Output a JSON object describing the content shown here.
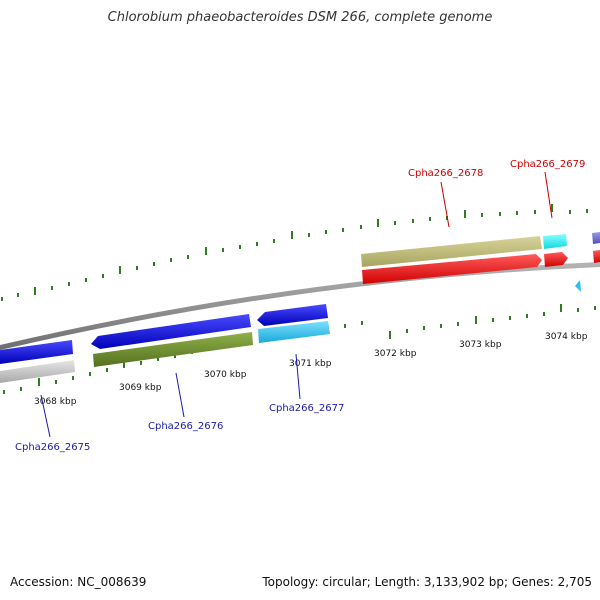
{
  "title": "Chlorobium phaeobacteroides DSM 266, complete genome",
  "footer": {
    "accession": "Accession: NC_008639",
    "summary": "Topology: circular; Length: 3,133,902 bp; Genes: 2,705"
  },
  "kbp_ticks": [
    "3068 kbp",
    "3069 kbp",
    "3070 kbp",
    "3071 kbp",
    "3072 kbp",
    "3073 kbp",
    "3074 kbp"
  ],
  "genes": [
    {
      "label": "Cpha266_2675",
      "color": "#1a1ab0"
    },
    {
      "label": "Cpha266_2676",
      "color": "#1a1ab0"
    },
    {
      "label": "Cpha266_2677",
      "color": "#1a1ab0"
    },
    {
      "label": "Cpha266_2678",
      "color": "#cc0000"
    },
    {
      "label": "Cpha266_2679",
      "color": "#cc0000"
    }
  ],
  "colors": {
    "backbone": "#888888",
    "tick": "#2e7d1f",
    "cds_blue": "#1010dd",
    "cds_gray": "#c8c8c8",
    "cds_olive": "#6b8e23",
    "cds_cyan": "#33ccee",
    "cds_khaki": "#bdb76b",
    "cds_aqua": "#22eeee",
    "cds_red": "#ee1111",
    "cds_purple": "#7070d0"
  }
}
